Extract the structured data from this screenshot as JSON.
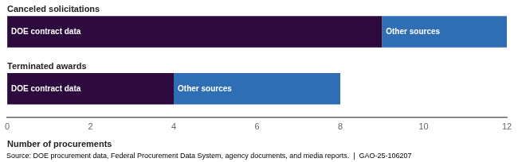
{
  "chart_data": {
    "type": "bar",
    "orientation": "horizontal",
    "stacked": true,
    "categories": [
      "Terminated awards",
      "Canceled solicitations"
    ],
    "series": [
      {
        "name": "DOE contract data",
        "color": "#2d0a3e",
        "values": [
          4,
          9
        ]
      },
      {
        "name": "Other sources",
        "color": "#2f6db5",
        "values": [
          4,
          3
        ]
      }
    ],
    "xlim": [
      0,
      12
    ],
    "xticks": [
      0,
      2,
      4,
      6,
      8,
      10,
      12
    ],
    "xlabel": "Number of procurements",
    "annotations": [
      "Source: DOE procurement data, Federal Procurement Data System, agency documents, and media reports.  |  GAO-25-106207"
    ],
    "grid": false
  }
}
